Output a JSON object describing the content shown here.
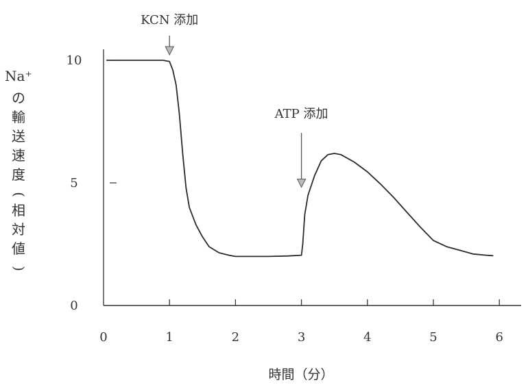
{
  "chart_data": {
    "type": "line",
    "title": "",
    "xlabel": "時間（分）",
    "ylabel": "Na⁺の輸送速度（相対値）",
    "xlim": [
      0,
      6.3
    ],
    "ylim": [
      0,
      10
    ],
    "x_ticks": [
      "0",
      "1",
      "2",
      "3",
      "4",
      "5",
      "6"
    ],
    "y_ticks": [
      "0",
      "5",
      "10"
    ],
    "grid": false,
    "series": [
      {
        "x": [
          0.05,
          0.5,
          0.9,
          1.0,
          1.05,
          1.1,
          1.15,
          1.2,
          1.25,
          1.3,
          1.4,
          1.5,
          1.6,
          1.75,
          1.9,
          2.0,
          2.5,
          2.8,
          3.0,
          3.02,
          3.05,
          3.1,
          3.2,
          3.3,
          3.4,
          3.5,
          3.6,
          3.8,
          4.0,
          4.2,
          4.4,
          4.6,
          4.8,
          5.0,
          5.2,
          5.4,
          5.6,
          5.8,
          5.9
        ],
        "y": [
          10.0,
          10.0,
          10.0,
          9.95,
          9.6,
          9.0,
          7.8,
          6.2,
          4.8,
          4.0,
          3.3,
          2.8,
          2.4,
          2.15,
          2.05,
          2.0,
          2.0,
          2.02,
          2.05,
          2.5,
          3.7,
          4.5,
          5.3,
          5.9,
          6.15,
          6.2,
          6.15,
          5.85,
          5.45,
          4.95,
          4.4,
          3.8,
          3.2,
          2.65,
          2.4,
          2.25,
          2.1,
          2.05,
          2.03
        ]
      }
    ],
    "annotations": [
      {
        "label": "KCN 添加",
        "x": 1.0,
        "y_value": 10.0
      },
      {
        "label": "ATP 添加",
        "x": 3.0,
        "y_value": 4.6
      }
    ]
  }
}
